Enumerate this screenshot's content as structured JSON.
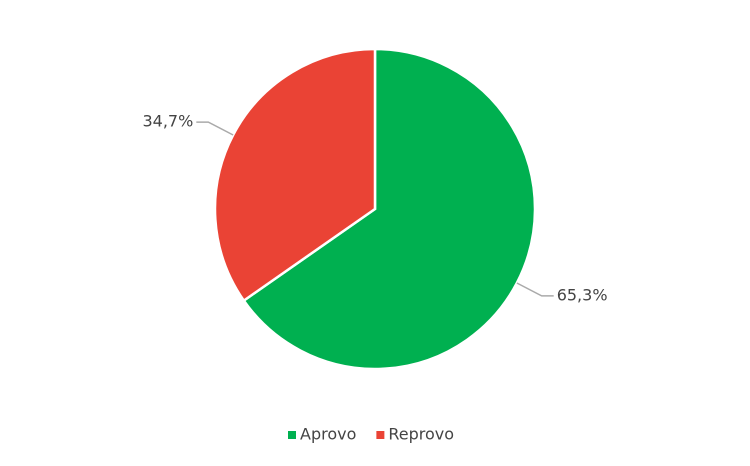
{
  "chart_data": {
    "type": "pie",
    "categories": [
      "Aprovo",
      "Reprovo"
    ],
    "values": [
      65.3,
      34.7
    ],
    "value_labels": [
      "65,3%",
      "34,7%"
    ],
    "colors": [
      "#00b050",
      "#ea4335"
    ],
    "legend": "bottom"
  }
}
